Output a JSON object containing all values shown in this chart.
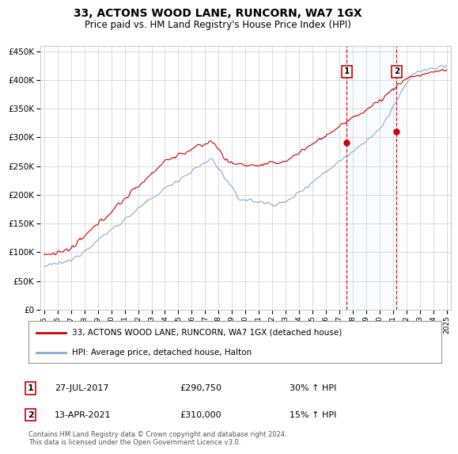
{
  "title": "33, ACTONS WOOD LANE, RUNCORN, WA7 1GX",
  "subtitle": "Price paid vs. HM Land Registry's House Price Index (HPI)",
  "ylim": [
    0,
    460000
  ],
  "yticks": [
    0,
    50000,
    100000,
    150000,
    200000,
    250000,
    300000,
    350000,
    400000,
    450000
  ],
  "ytick_labels": [
    "£0",
    "£50K",
    "£100K",
    "£150K",
    "£200K",
    "£250K",
    "£300K",
    "£350K",
    "£400K",
    "£450K"
  ],
  "x_start_year": 1995,
  "x_end_year": 2025,
  "red_color": "#cc0000",
  "blue_color": "#88aacc",
  "marker1_year": 2017.55,
  "marker2_year": 2021.27,
  "marker1_value": 290750,
  "marker2_value": 310000,
  "marker1_label": "1",
  "marker2_label": "2",
  "marker1_date": "27-JUL-2017",
  "marker2_date": "13-APR-2021",
  "marker1_pct": "30% ↑ HPI",
  "marker2_pct": "15% ↑ HPI",
  "legend_line1": "33, ACTONS WOOD LANE, RUNCORN, WA7 1GX (detached house)",
  "legend_line2": "HPI: Average price, detached house, Halton",
  "footer": "Contains HM Land Registry data © Crown copyright and database right 2024.\nThis data is licensed under the Open Government Licence v3.0.",
  "background_color": "#ffffff",
  "grid_color": "#cccccc",
  "shade_color": "#ddeeff"
}
